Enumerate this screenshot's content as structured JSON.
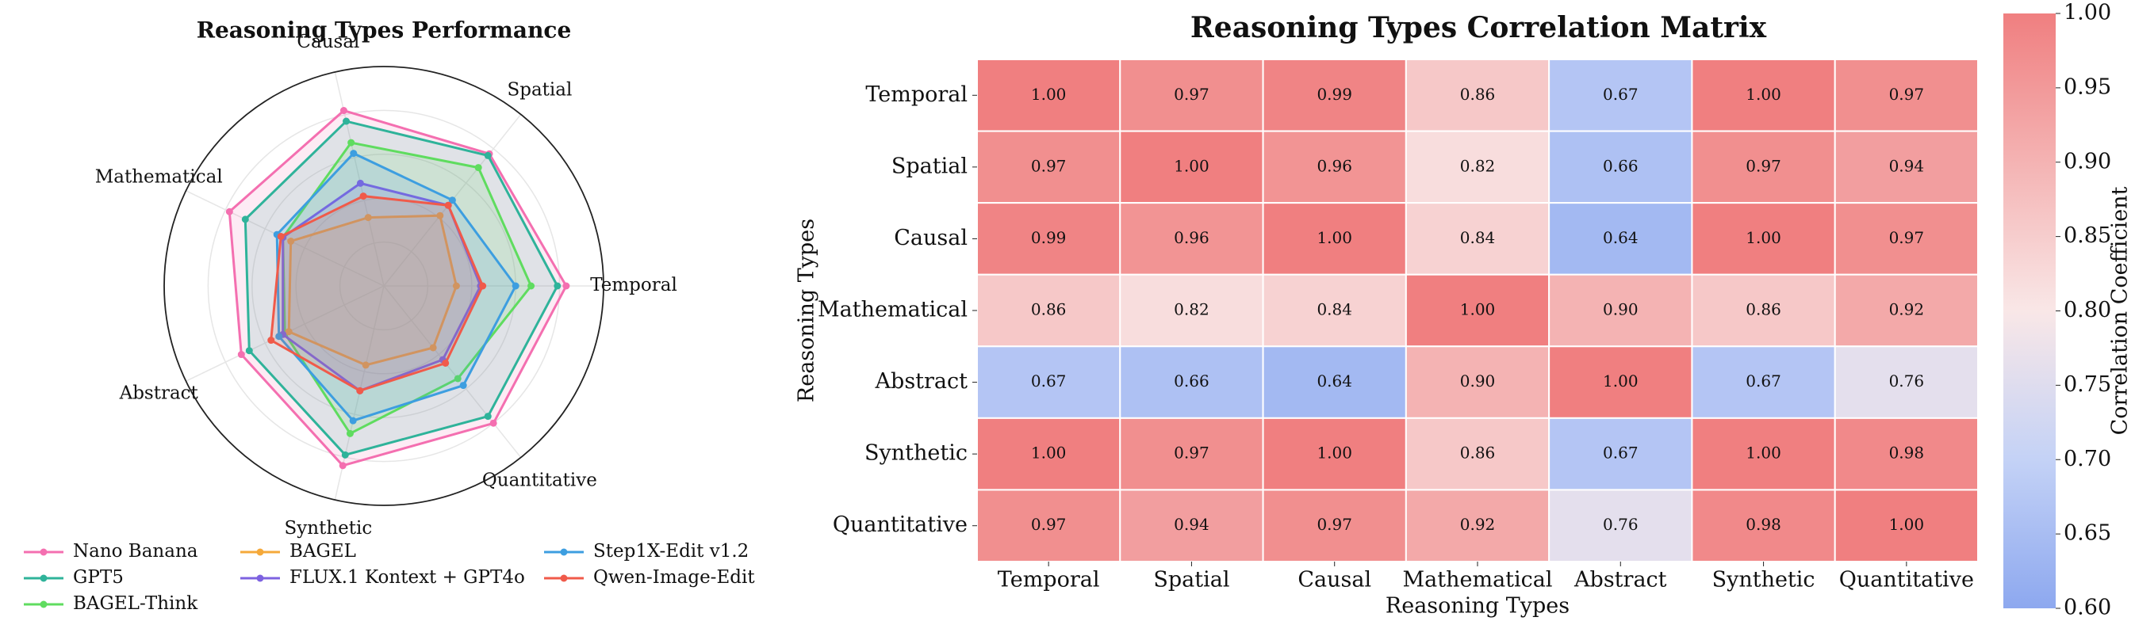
{
  "chart_data": [
    {
      "type": "radar",
      "title": "Reasoning Types Performance",
      "categories": [
        "Temporal",
        "Spatial",
        "Causal",
        "Mathematical",
        "Abstract",
        "Synthetic",
        "Quantitative"
      ],
      "rlim": [
        0,
        100
      ],
      "series": [
        {
          "name": "Nano Banana",
          "color": "#f46fb0",
          "values": [
            83,
            77,
            82,
            78,
            72,
            84,
            80
          ]
        },
        {
          "name": "GPT5",
          "color": "#2fb39a",
          "values": [
            79,
            76,
            77,
            70,
            68,
            79,
            76
          ]
        },
        {
          "name": "BAGEL-Think",
          "color": "#5fdc5f",
          "values": [
            67,
            69,
            67,
            51,
            50,
            69,
            54
          ]
        },
        {
          "name": "BAGEL",
          "color": "#f5a93a",
          "values": [
            33,
            41,
            32,
            47,
            48,
            37,
            36
          ]
        },
        {
          "name": "FLUX.1 Kontext + GPT4o",
          "color": "#7d62e0",
          "values": [
            44,
            47,
            48,
            51,
            51,
            49,
            43
          ]
        },
        {
          "name": "Step1X-Edit v1.2",
          "color": "#3d9ee0",
          "values": [
            60,
            50,
            62,
            54,
            53,
            63,
            58
          ]
        },
        {
          "name": "Qwen-Image-Edit",
          "color": "#f05a4a",
          "values": [
            45,
            47,
            42,
            52,
            57,
            49,
            45
          ]
        }
      ]
    },
    {
      "type": "heatmap",
      "title": "Reasoning Types Correlation Matrix",
      "xlabel": "Reasoning Types",
      "ylabel": "Reasoning Types",
      "x_categories": [
        "Temporal",
        "Spatial",
        "Causal",
        "Mathematical",
        "Abstract",
        "Synthetic",
        "Quantitative"
      ],
      "y_categories": [
        "Temporal",
        "Spatial",
        "Causal",
        "Mathematical",
        "Abstract",
        "Synthetic",
        "Quantitative"
      ],
      "values": [
        [
          1.0,
          0.97,
          0.99,
          0.86,
          0.67,
          1.0,
          0.97
        ],
        [
          0.97,
          1.0,
          0.96,
          0.82,
          0.66,
          0.97,
          0.94
        ],
        [
          0.99,
          0.96,
          1.0,
          0.84,
          0.64,
          1.0,
          0.97
        ],
        [
          0.86,
          0.82,
          0.84,
          1.0,
          0.9,
          0.86,
          0.92
        ],
        [
          0.67,
          0.66,
          0.64,
          0.9,
          1.0,
          0.67,
          0.76
        ],
        [
          1.0,
          0.97,
          1.0,
          0.86,
          0.67,
          1.0,
          0.98
        ],
        [
          0.97,
          0.94,
          0.97,
          0.92,
          0.76,
          0.98,
          1.0
        ]
      ],
      "value_labels": [
        [
          "1.00",
          "0.97",
          "0.99",
          "0.86",
          "0.67",
          "1.00",
          "0.97"
        ],
        [
          "0.97",
          "1.00",
          "0.96",
          "0.82",
          "0.66",
          "0.97",
          "0.94"
        ],
        [
          "0.99",
          "0.96",
          "1.00",
          "0.84",
          "0.64",
          "1.00",
          "0.97"
        ],
        [
          "0.86",
          "0.82",
          "0.84",
          "1.00",
          "0.90",
          "0.86",
          "0.92"
        ],
        [
          "0.67",
          "0.66",
          "0.64",
          "0.90",
          "1.00",
          "0.67",
          "0.76"
        ],
        [
          "1.00",
          "0.97",
          "1.00",
          "0.86",
          "0.67",
          "1.00",
          "0.98"
        ],
        [
          "0.97",
          "0.94",
          "0.97",
          "0.92",
          "0.76",
          "0.98",
          "1.00"
        ]
      ],
      "colorbar": {
        "label": "Correlation Coefficient",
        "lim": [
          0.6,
          1.0
        ],
        "ticks": [
          {
            "value": 0.6,
            "label": "0.60"
          },
          {
            "value": 0.65,
            "label": "0.65"
          },
          {
            "value": 0.7,
            "label": "0.70"
          },
          {
            "value": 0.75,
            "label": "0.75"
          },
          {
            "value": 0.8,
            "label": "0.80"
          },
          {
            "value": 0.85,
            "label": "0.85"
          },
          {
            "value": 0.9,
            "label": "0.90"
          },
          {
            "value": 0.95,
            "label": "0.95"
          },
          {
            "value": 1.0,
            "label": "1.00"
          }
        ],
        "colors": [
          "#8da8ef",
          "#c4d2f6",
          "#f9e7e7",
          "#f4b3b3",
          "#f07f80"
        ]
      }
    }
  ]
}
